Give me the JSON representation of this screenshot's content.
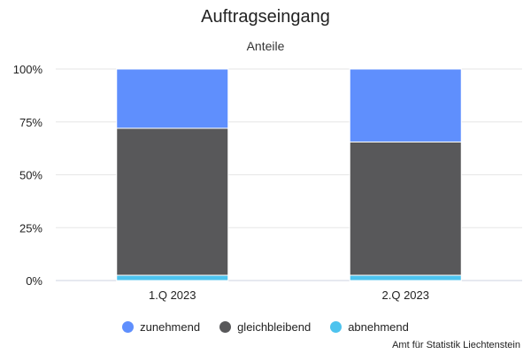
{
  "chart_data": {
    "type": "bar",
    "stacked": true,
    "percent": true,
    "title": "Auftragseingang",
    "subtitle": "Anteile",
    "categories": [
      "1.Q 2023",
      "2.Q 2023"
    ],
    "series": [
      {
        "name": "abnehmend",
        "color": "#4dc3ee",
        "values": [
          2.5,
          2.5
        ]
      },
      {
        "name": "gleichbleibend",
        "color": "#58585a",
        "values": [
          69.5,
          63
        ]
      },
      {
        "name": "zunehmend",
        "color": "#5f8ffd",
        "values": [
          28,
          34.5
        ]
      }
    ],
    "legend_order": [
      "zunehmend",
      "gleichbleibend",
      "abnehmend"
    ],
    "ylim": [
      0,
      100
    ],
    "yticks": [
      "0%",
      "25%",
      "50%",
      "75%",
      "100%"
    ],
    "grid": true,
    "legend_position": "bottom"
  },
  "credit": "Amt für Statistik Liechtenstein"
}
